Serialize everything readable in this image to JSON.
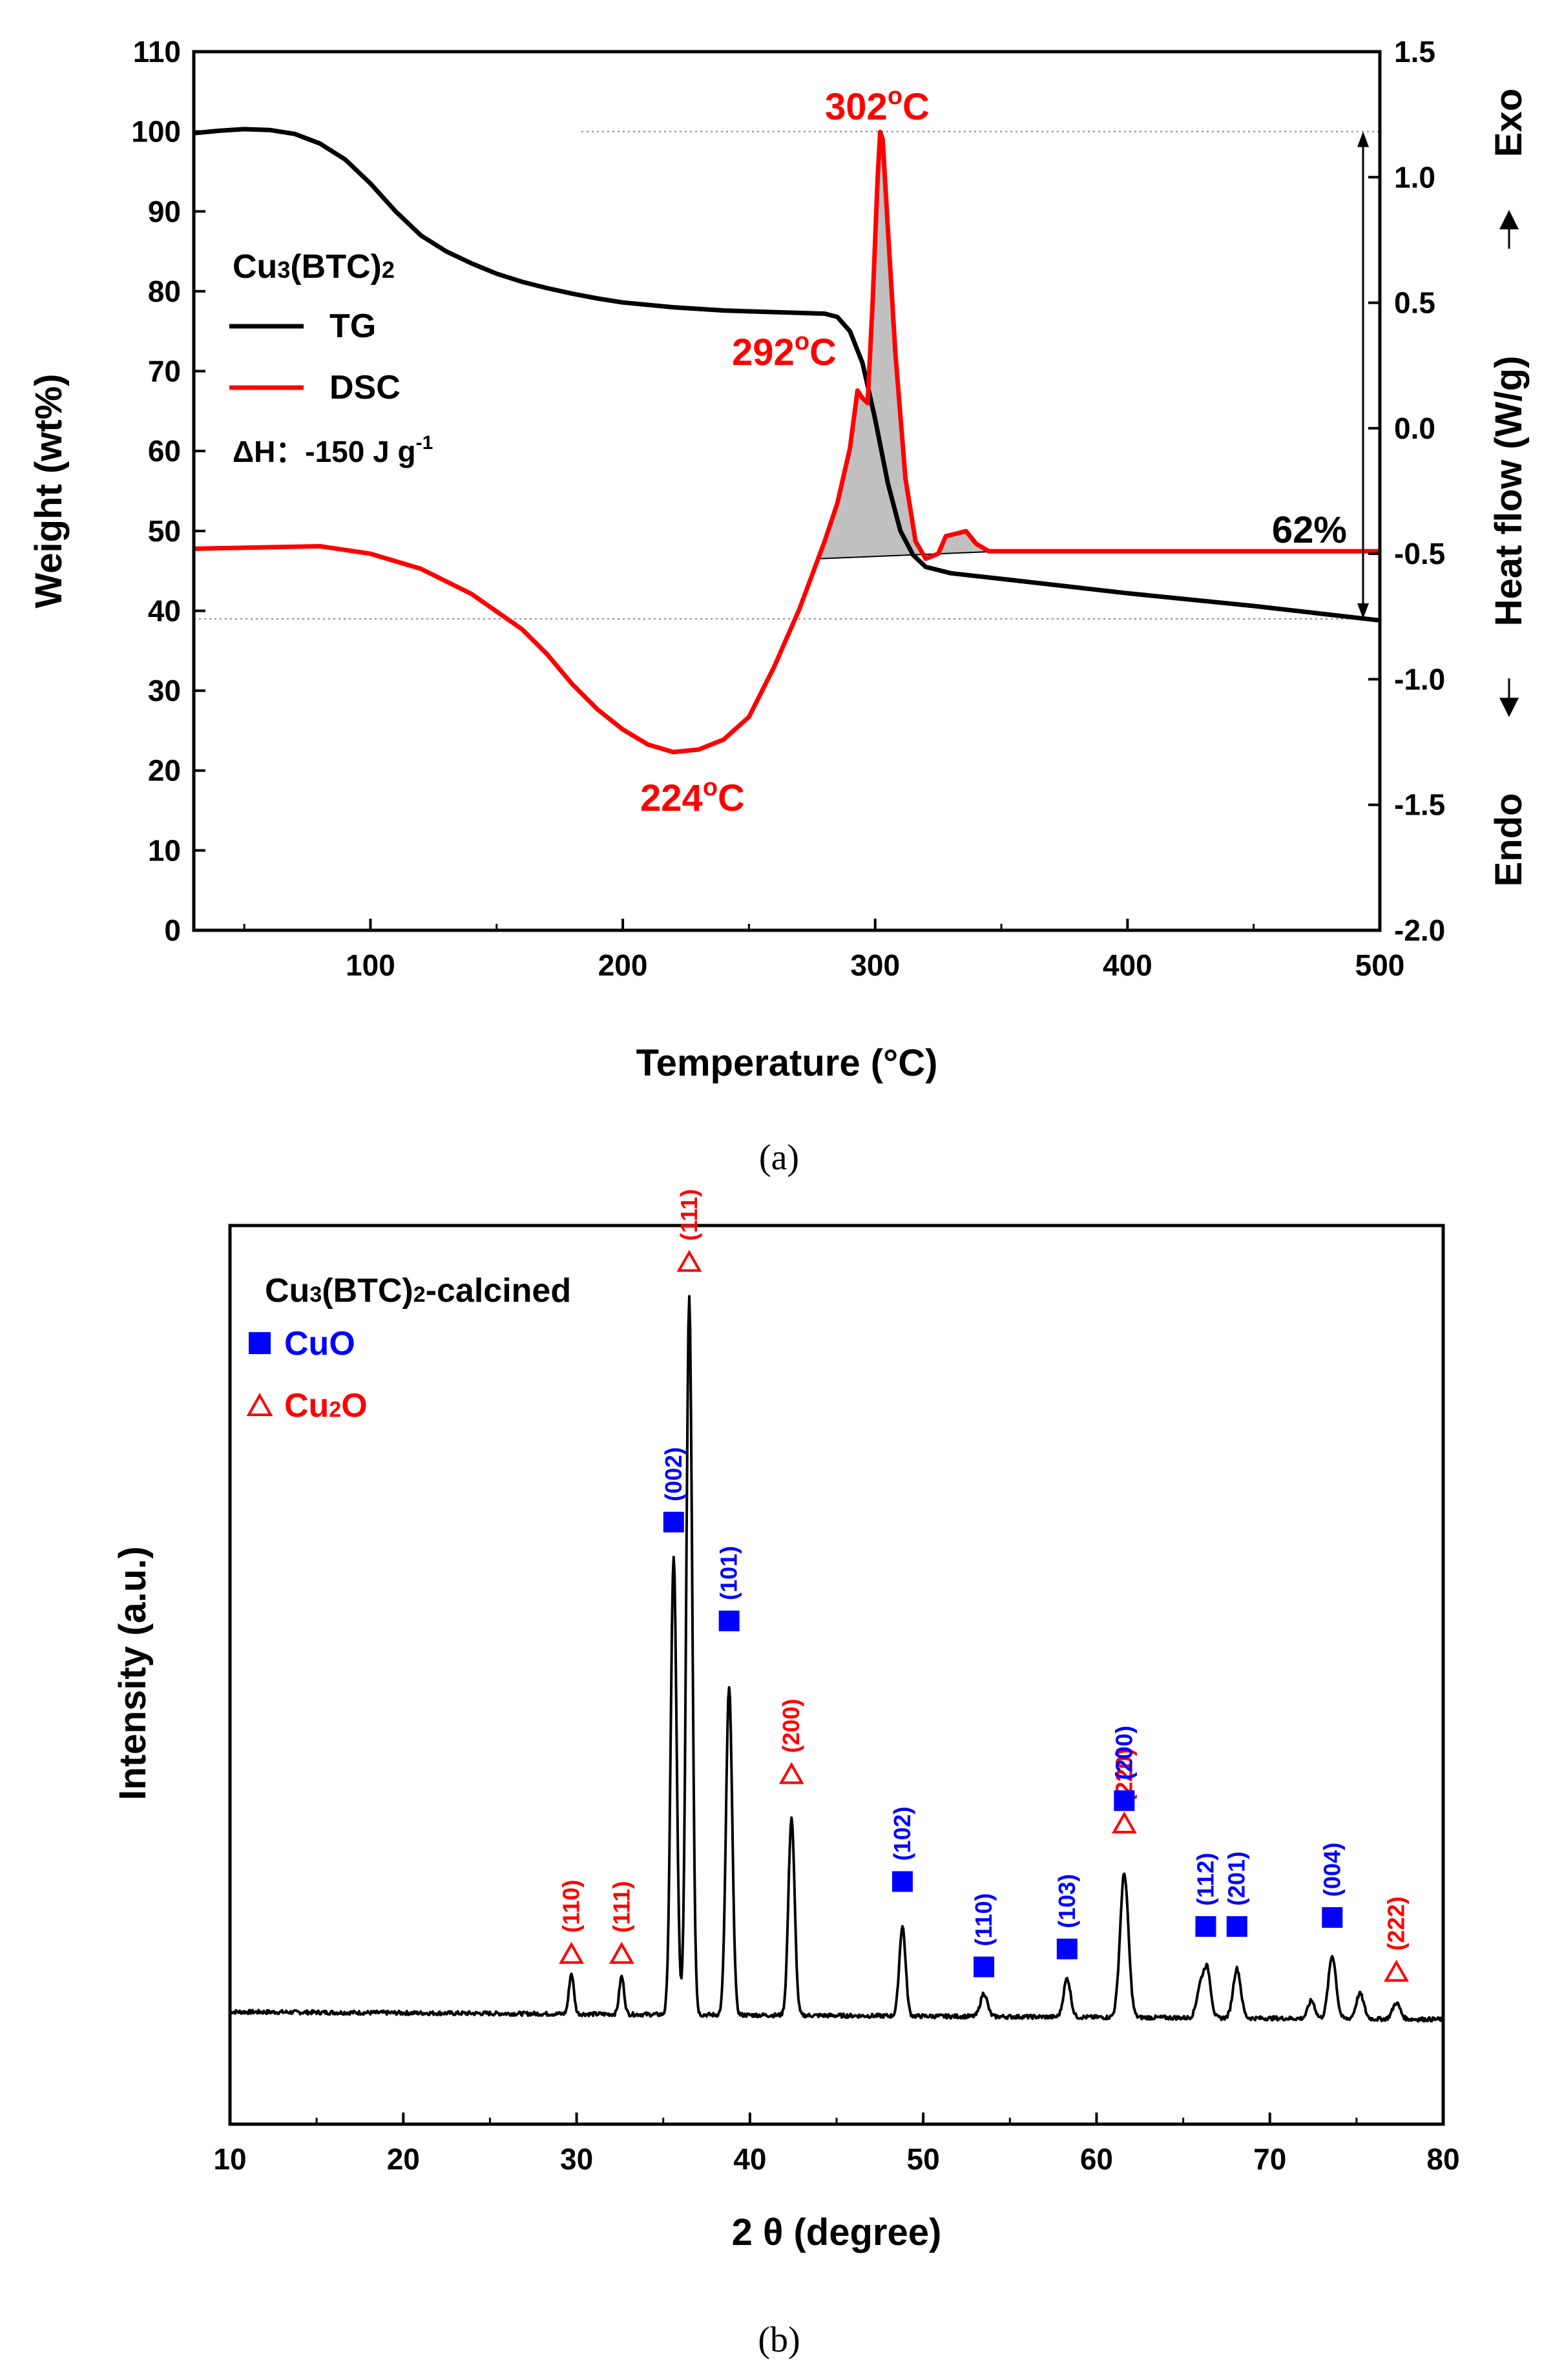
{
  "chart_data": [
    {
      "type": "line",
      "panel_label": "(a)",
      "title": "Cu3(BTC)2",
      "xlabel": "Temperature (°C)",
      "ylabel": "Weight (wt%)",
      "y2label": "Heat flow (W/g)",
      "exo_label": "Exo",
      "endo_label": "Endo",
      "xlim": [
        30,
        500
      ],
      "ylim": [
        0,
        110
      ],
      "y2lim": [
        -2.0,
        1.5
      ],
      "xticks": [
        100,
        200,
        300,
        400,
        500
      ],
      "yticks": [
        0,
        10,
        20,
        30,
        40,
        50,
        60,
        70,
        80,
        90,
        100,
        110
      ],
      "y2ticks": [
        "-2.0",
        "-1.5",
        "-1.0",
        "-0.5",
        "0.0",
        "0.5",
        "1.0",
        "1.5"
      ],
      "legend": {
        "title_prefix": "Cu",
        "title_sub1": "3",
        "title_mid": "(BTC)",
        "title_sub2": "2",
        "tg": "TG",
        "dsc": "DSC",
        "dh": "ΔH：-150 J g",
        "dh_exp": "-1"
      },
      "annotations": {
        "peak302": "302",
        "peak292": "292",
        "trough224": "224",
        "unit": "C",
        "deg": "o",
        "loss": "62%"
      },
      "reference_lines": {
        "weight_top": 100,
        "weight_bottom": 39
      },
      "series": [
        {
          "name": "TG",
          "color": "#000000",
          "axis": "left",
          "points": [
            [
              30,
              99.8
            ],
            [
              40,
              100.1
            ],
            [
              50,
              100.3
            ],
            [
              60,
              100.2
            ],
            [
              70,
              99.7
            ],
            [
              80,
              98.5
            ],
            [
              90,
              96.5
            ],
            [
              100,
              93.5
            ],
            [
              110,
              90
            ],
            [
              120,
              87
            ],
            [
              130,
              85
            ],
            [
              140,
              83.5
            ],
            [
              150,
              82.2
            ],
            [
              160,
              81.2
            ],
            [
              170,
              80.4
            ],
            [
              180,
              79.7
            ],
            [
              190,
              79.1
            ],
            [
              200,
              78.6
            ],
            [
              220,
              78
            ],
            [
              240,
              77.6
            ],
            [
              260,
              77.4
            ],
            [
              280,
              77.2
            ],
            [
              285,
              76.8
            ],
            [
              290,
              75
            ],
            [
              295,
              71
            ],
            [
              300,
              64
            ],
            [
              305,
              56
            ],
            [
              310,
              50
            ],
            [
              315,
              47
            ],
            [
              320,
              45.5
            ],
            [
              330,
              44.7
            ],
            [
              350,
              44
            ],
            [
              400,
              42.2
            ],
            [
              450,
              40.6
            ],
            [
              500,
              38.8
            ]
          ]
        },
        {
          "name": "DSC",
          "color": "#ff0000",
          "axis": "right",
          "points": [
            [
              30,
              -0.48
            ],
            [
              80,
              -0.47
            ],
            [
              100,
              -0.5
            ],
            [
              120,
              -0.56
            ],
            [
              140,
              -0.66
            ],
            [
              160,
              -0.8
            ],
            [
              170,
              -0.9
            ],
            [
              180,
              -1.02
            ],
            [
              190,
              -1.12
            ],
            [
              200,
              -1.2
            ],
            [
              210,
              -1.26
            ],
            [
              220,
              -1.29
            ],
            [
              230,
              -1.28
            ],
            [
              240,
              -1.24
            ],
            [
              250,
              -1.15
            ],
            [
              260,
              -0.95
            ],
            [
              270,
              -0.72
            ],
            [
              280,
              -0.45
            ],
            [
              285,
              -0.3
            ],
            [
              290,
              -0.08
            ],
            [
              293,
              0.15
            ],
            [
              295,
              0.12
            ],
            [
              297,
              0.1
            ],
            [
              299,
              0.5
            ],
            [
              301,
              1.0
            ],
            [
              302,
              1.18
            ],
            [
              303,
              1.15
            ],
            [
              305,
              0.8
            ],
            [
              308,
              0.3
            ],
            [
              312,
              -0.2
            ],
            [
              316,
              -0.45
            ],
            [
              320,
              -0.52
            ],
            [
              325,
              -0.5
            ],
            [
              328,
              -0.43
            ],
            [
              332,
              -0.42
            ],
            [
              336,
              -0.41
            ],
            [
              340,
              -0.46
            ],
            [
              345,
              -0.49
            ],
            [
              350,
              -0.49
            ],
            [
              500,
              -0.49
            ]
          ]
        }
      ],
      "shaded_peak": {
        "baseline_start": [
          277,
          -0.52
        ],
        "baseline_end": [
          350,
          -0.49
        ]
      }
    },
    {
      "type": "line",
      "panel_label": "(b)",
      "xlabel": "2 θ (degree)",
      "ylabel": "Intensity (a.u.)",
      "xlim": [
        10,
        80
      ],
      "ylim": [
        0,
        100
      ],
      "xticks": [
        10,
        20,
        30,
        40,
        50,
        60,
        70,
        80
      ],
      "legend": {
        "title": "Cu3(BTC)2-calcined",
        "title_prefix": "Cu",
        "title_sub": "3",
        "title_mid": "(BTC)",
        "title_sub2": "2",
        "title_suffix": "-calcined",
        "cuo": "CuO",
        "cu2o_a": "Cu",
        "cu2o_sub": "2",
        "cu2o_b": "O",
        "cuo_color": "#0000ff",
        "cu2o_color": "#ff0000"
      },
      "baseline": 12.5,
      "peaks": [
        {
          "x": 29.7,
          "h": 4.5,
          "w": 0.14
        },
        {
          "x": 32.6,
          "h": 4.2,
          "w": 0.14
        },
        {
          "x": 35.6,
          "h": 51,
          "w": 0.17
        },
        {
          "x": 36.5,
          "h": 80,
          "w": 0.17
        },
        {
          "x": 38.8,
          "h": 36.5,
          "w": 0.18
        },
        {
          "x": 42.4,
          "h": 22,
          "w": 0.18
        },
        {
          "x": 48.8,
          "h": 10,
          "w": 0.18
        },
        {
          "x": 53.5,
          "h": 2.6,
          "w": 0.2
        },
        {
          "x": 58.3,
          "h": 4.3,
          "w": 0.2
        },
        {
          "x": 61.6,
          "h": 16,
          "w": 0.24
        },
        {
          "x": 66.0,
          "h": 3.5,
          "w": 0.22
        },
        {
          "x": 66.4,
          "h": 5,
          "w": 0.2
        },
        {
          "x": 68.1,
          "h": 5.5,
          "w": 0.22
        },
        {
          "x": 72.4,
          "h": 2,
          "w": 0.2
        },
        {
          "x": 73.6,
          "h": 7,
          "w": 0.22
        },
        {
          "x": 75.2,
          "h": 2.8,
          "w": 0.22
        },
        {
          "x": 77.3,
          "h": 1.8,
          "w": 0.22
        }
      ],
      "labels": [
        {
          "phase": "Cu2O",
          "hkl": "(110)",
          "x": 29.7,
          "y": 19
        },
        {
          "phase": "Cu2O",
          "hkl": "(111)",
          "x": 32.6,
          "y": 19
        },
        {
          "phase": "CuO",
          "hkl": "(002)",
          "x": 35.6,
          "y": 67
        },
        {
          "phase": "Cu2O",
          "hkl": "(111)",
          "x": 36.5,
          "y": 96
        },
        {
          "phase": "CuO",
          "hkl": "(101)",
          "x": 38.8,
          "y": 56
        },
        {
          "phase": "Cu2O",
          "hkl": "(200)",
          "x": 42.4,
          "y": 39
        },
        {
          "phase": "CuO",
          "hkl": "(102)",
          "x": 48.8,
          "y": 27
        },
        {
          "phase": "CuO",
          "hkl": "(110)",
          "x": 53.5,
          "y": 17.5
        },
        {
          "phase": "CuO",
          "hkl": "(103)",
          "x": 58.3,
          "y": 19.5
        },
        {
          "phase": "Cu2O",
          "hkl": "(220)",
          "x": 61.6,
          "y": 33.5
        },
        {
          "phase": "CuO",
          "hkl": "(200)",
          "x": 61.6,
          "y": 36
        },
        {
          "phase": "CuO",
          "hkl": "(112)",
          "x": 66.3,
          "y": 22
        },
        {
          "phase": "CuO",
          "hkl": "(201)",
          "x": 68.1,
          "y": 22
        },
        {
          "phase": "CuO",
          "hkl": "(004)",
          "x": 73.6,
          "y": 23
        },
        {
          "phase": "Cu2O",
          "hkl": "(222)",
          "x": 77.3,
          "y": 17
        }
      ]
    }
  ]
}
